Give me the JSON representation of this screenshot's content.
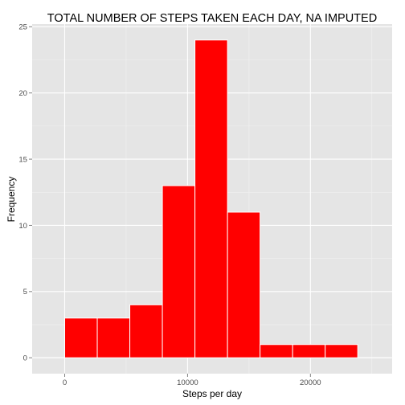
{
  "chart_data": {
    "type": "bar",
    "title": "TOTAL NUMBER OF STEPS TAKEN EACH DAY, NA IMPUTED",
    "xlabel": "Steps per day",
    "ylabel": "Frequency",
    "xlim": [
      -2650,
      26650
    ],
    "ylim": [
      -1.2,
      25.2
    ],
    "x_ticks": [
      0,
      10000,
      20000
    ],
    "x_tick_labels": [
      "0",
      "10000",
      "20000"
    ],
    "y_ticks": [
      0,
      5,
      10,
      15,
      20,
      25
    ],
    "y_tick_labels": [
      "0",
      "5",
      "10",
      "15",
      "20",
      "25"
    ],
    "bins": [
      {
        "x_start": -2650,
        "x_end": 0,
        "count": 0
      },
      {
        "x_start": 0,
        "x_end": 2650,
        "count": 3
      },
      {
        "x_start": 2650,
        "x_end": 5300,
        "count": 3
      },
      {
        "x_start": 5300,
        "x_end": 7950,
        "count": 4
      },
      {
        "x_start": 7950,
        "x_end": 10600,
        "count": 13
      },
      {
        "x_start": 10600,
        "x_end": 13250,
        "count": 24
      },
      {
        "x_start": 13250,
        "x_end": 15900,
        "count": 11
      },
      {
        "x_start": 15900,
        "x_end": 18550,
        "count": 1
      },
      {
        "x_start": 18550,
        "x_end": 21200,
        "count": 1
      },
      {
        "x_start": 21200,
        "x_end": 23850,
        "count": 1
      },
      {
        "x_start": 23850,
        "x_end": 26500,
        "count": 0
      }
    ],
    "grid": true,
    "legend": "none",
    "colors": {
      "bar_fill": "#ff0000",
      "bar_outline": "#ffffff",
      "panel_background": "#e5e5e5",
      "grid_major": "#ffffff",
      "grid_minor": "#f2f2f2",
      "tick_label": "#4d4d4d"
    }
  }
}
